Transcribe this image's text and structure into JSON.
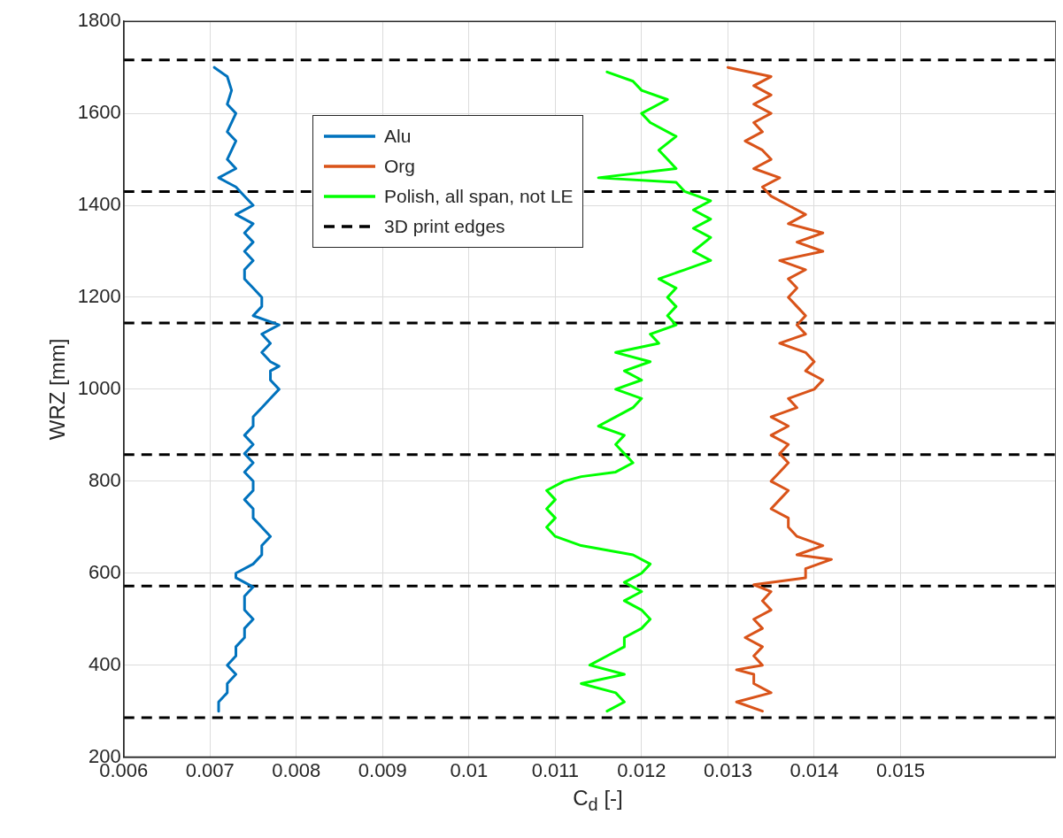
{
  "chart_data": {
    "type": "line",
    "xlabel": "C$_{d}$ [-]",
    "ylabel": "WRZ [mm]",
    "xlim": [
      0.006,
      0.0168
    ],
    "xticks": [
      0.006,
      0.007,
      0.008,
      0.009,
      0.01,
      0.011,
      0.012,
      0.013,
      0.014,
      0.015
    ],
    "ylim": [
      200,
      1800
    ],
    "yticks": [
      200,
      400,
      600,
      800,
      1000,
      1200,
      1400,
      1600,
      1800
    ],
    "grid": true,
    "legend": "top left",
    "marker": "none",
    "line_style": "solid",
    "series": [
      {
        "name": "Alu",
        "color": "#0072bd",
        "x": [
          0.00705,
          0.0072,
          0.00725,
          0.0072,
          0.0073,
          0.0072,
          0.0073,
          0.0072,
          0.0073,
          0.0071,
          0.0073,
          0.0074,
          0.0075,
          0.0073,
          0.0075,
          0.0074,
          0.0075,
          0.0074,
          0.0075,
          0.0074,
          0.0074,
          0.0075,
          0.0076,
          0.0076,
          0.0075,
          0.0078,
          0.0076,
          0.0077,
          0.0076,
          0.0077,
          0.0078,
          0.0077,
          0.0077,
          0.0078,
          0.0077,
          0.0076,
          0.0075,
          0.0075,
          0.0074,
          0.0075,
          0.0074,
          0.0075,
          0.0074,
          0.0075,
          0.0075,
          0.0074,
          0.0075,
          0.0075,
          0.0076,
          0.0077,
          0.0076,
          0.0076,
          0.0075,
          0.0073,
          0.0073,
          0.0075,
          0.0074,
          0.0074,
          0.0075,
          0.0074,
          0.0074,
          0.0073,
          0.0073,
          0.0072,
          0.0073,
          0.0072,
          0.0072,
          0.0071,
          0.0071
        ],
        "values": [
          1700,
          1680,
          1650,
          1620,
          1600,
          1560,
          1540,
          1500,
          1480,
          1460,
          1440,
          1420,
          1400,
          1380,
          1360,
          1340,
          1320,
          1300,
          1280,
          1260,
          1240,
          1220,
          1200,
          1180,
          1160,
          1140,
          1120,
          1100,
          1080,
          1060,
          1050,
          1040,
          1020,
          1000,
          980,
          960,
          940,
          920,
          900,
          880,
          860,
          840,
          820,
          800,
          780,
          760,
          740,
          720,
          700,
          680,
          660,
          640,
          620,
          600,
          590,
          570,
          550,
          520,
          500,
          480,
          460,
          440,
          420,
          400,
          380,
          360,
          340,
          320,
          300
        ]
      },
      {
        "name": "Org",
        "color": "#d95319",
        "x": [
          0.013,
          0.0135,
          0.0133,
          0.0135,
          0.0133,
          0.0135,
          0.0133,
          0.0134,
          0.0132,
          0.0134,
          0.0135,
          0.0133,
          0.0136,
          0.0134,
          0.0135,
          0.0137,
          0.0139,
          0.0137,
          0.0141,
          0.0138,
          0.0141,
          0.0136,
          0.0139,
          0.0137,
          0.0138,
          0.0137,
          0.0138,
          0.0139,
          0.0138,
          0.0139,
          0.0136,
          0.0139,
          0.014,
          0.0139,
          0.0141,
          0.014,
          0.0137,
          0.0138,
          0.0135,
          0.0137,
          0.0135,
          0.0137,
          0.0136,
          0.0137,
          0.0136,
          0.0135,
          0.0137,
          0.0136,
          0.0135,
          0.0137,
          0.0137,
          0.0138,
          0.0141,
          0.0138,
          0.0142,
          0.0139,
          0.0139,
          0.0133,
          0.0135,
          0.0134,
          0.0135,
          0.0133,
          0.0134,
          0.0132,
          0.0134,
          0.0133,
          0.0134,
          0.0131,
          0.0133,
          0.0133,
          0.0135,
          0.0131,
          0.0134
        ],
        "values": [
          1700,
          1680,
          1660,
          1640,
          1620,
          1600,
          1580,
          1560,
          1540,
          1520,
          1500,
          1480,
          1460,
          1440,
          1420,
          1400,
          1380,
          1360,
          1340,
          1320,
          1300,
          1280,
          1260,
          1240,
          1220,
          1200,
          1180,
          1160,
          1140,
          1120,
          1100,
          1080,
          1060,
          1040,
          1020,
          1000,
          980,
          960,
          940,
          920,
          900,
          880,
          860,
          840,
          820,
          800,
          780,
          760,
          740,
          720,
          700,
          680,
          660,
          640,
          630,
          610,
          590,
          575,
          560,
          540,
          520,
          500,
          480,
          460,
          440,
          420,
          400,
          390,
          380,
          360,
          340,
          320,
          300
        ]
      },
      {
        "name": "Polish, all span, not LE",
        "color": "#00ff00",
        "x": [
          0.0116,
          0.0119,
          0.012,
          0.0123,
          0.012,
          0.0121,
          0.0124,
          0.0122,
          0.0123,
          0.0124,
          0.0115,
          0.0124,
          0.0125,
          0.0128,
          0.0126,
          0.0128,
          0.0126,
          0.0128,
          0.0126,
          0.0128,
          0.0125,
          0.0122,
          0.0124,
          0.0123,
          0.0124,
          0.0123,
          0.0124,
          0.0121,
          0.0122,
          0.0117,
          0.0121,
          0.0118,
          0.012,
          0.0117,
          0.012,
          0.0119,
          0.0117,
          0.0115,
          0.0118,
          0.0117,
          0.0118,
          0.0119,
          0.0117,
          0.0113,
          0.0111,
          0.0109,
          0.011,
          0.0109,
          0.011,
          0.0109,
          0.011,
          0.0113,
          0.0116,
          0.0119,
          0.0121,
          0.012,
          0.0118,
          0.012,
          0.0118,
          0.012,
          0.0121,
          0.012,
          0.0118,
          0.0118,
          0.0116,
          0.0114,
          0.0118,
          0.0113,
          0.0117,
          0.0118,
          0.0116
        ],
        "values": [
          1690,
          1670,
          1650,
          1630,
          1600,
          1580,
          1550,
          1520,
          1500,
          1480,
          1460,
          1450,
          1430,
          1410,
          1390,
          1370,
          1350,
          1330,
          1300,
          1280,
          1260,
          1240,
          1220,
          1200,
          1180,
          1160,
          1140,
          1120,
          1100,
          1080,
          1060,
          1040,
          1020,
          1000,
          980,
          960,
          940,
          920,
          900,
          880,
          860,
          840,
          820,
          810,
          800,
          780,
          760,
          740,
          720,
          700,
          680,
          660,
          650,
          640,
          620,
          600,
          580,
          560,
          540,
          520,
          500,
          480,
          460,
          440,
          420,
          400,
          380,
          360,
          340,
          320,
          300
        ]
      }
    ],
    "ref_lines": [
      {
        "axis": "y",
        "value": 1716,
        "label": "3D print edges",
        "color": "#000000",
        "line_style": "dashed"
      },
      {
        "axis": "y",
        "value": 1430,
        "color": "#000000",
        "line_style": "dashed"
      },
      {
        "axis": "y",
        "value": 1144,
        "color": "#000000",
        "line_style": "dashed"
      },
      {
        "axis": "y",
        "value": 858,
        "color": "#000000",
        "line_style": "dashed"
      },
      {
        "axis": "y",
        "value": 572,
        "color": "#000000",
        "line_style": "dashed"
      },
      {
        "axis": "y",
        "value": 286,
        "color": "#000000",
        "line_style": "dashed"
      }
    ]
  }
}
